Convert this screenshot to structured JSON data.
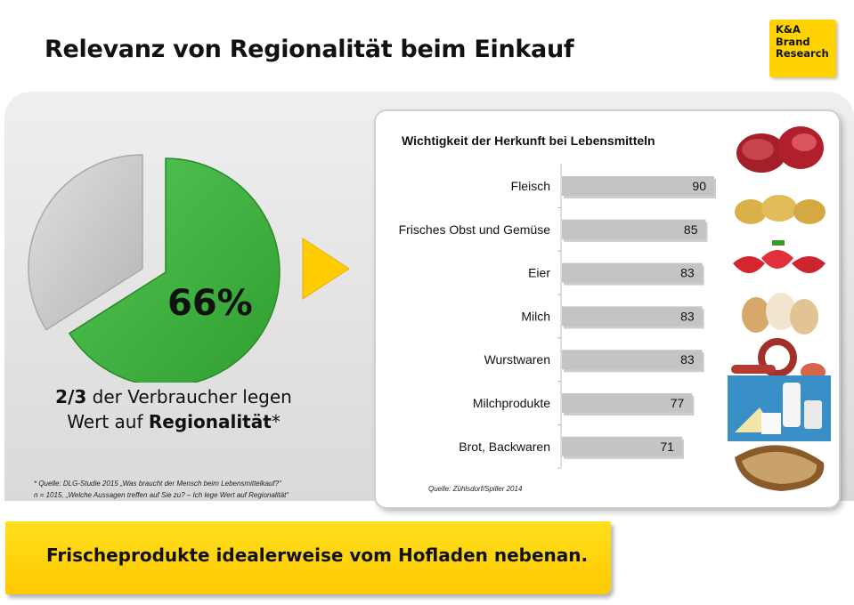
{
  "header": {
    "title": "Relevanz von Regionalität beim Einkauf"
  },
  "logo": {
    "line1": "K&A",
    "line2": "Brand",
    "line3": "Research"
  },
  "pie": {
    "value_label": "66%",
    "share": 0.66,
    "colors": {
      "main": "#3db33d",
      "rest": "#c8c8c8"
    }
  },
  "claim": {
    "part1": "2/3",
    "part2": " der Verbraucher legen",
    "part3": "Wert auf ",
    "part4": "Regionalität",
    "part5": "*"
  },
  "footnote": {
    "line1": "* Quelle: DLG-Studie 2015 „Was braucht der Mensch beim Lebensmittelkauf?“",
    "line2": "n = 1015, „Welche Aussagen treffen auf Sie zu? – Ich lege Wert auf Regionalität“"
  },
  "chart_data": {
    "type": "bar",
    "orientation": "horizontal",
    "title": "Wichtigkeit der Herkunft bei Lebensmitteln",
    "categories": [
      "Fleisch",
      "Frisches Obst und Gemüse",
      "Eier",
      "Milch",
      "Wurstwaren",
      "Milchprodukte",
      "Brot, Backwaren"
    ],
    "values": [
      90,
      85,
      83,
      83,
      83,
      77,
      71
    ],
    "xlim": [
      0,
      100
    ],
    "grid": false,
    "bar_color": "#c4c4c4"
  },
  "chart_source": "Quelle: Zühlsdorf/Spiller 2014",
  "images": [
    "meat",
    "potatoes",
    "strawberries",
    "eggs",
    "sausages",
    "dairy",
    "bread"
  ],
  "banner": {
    "text": "Frischeprodukte idealerweise vom Hofladen nebenan."
  },
  "colors": {
    "accent": "#ffd200",
    "green": "#3db33d"
  }
}
